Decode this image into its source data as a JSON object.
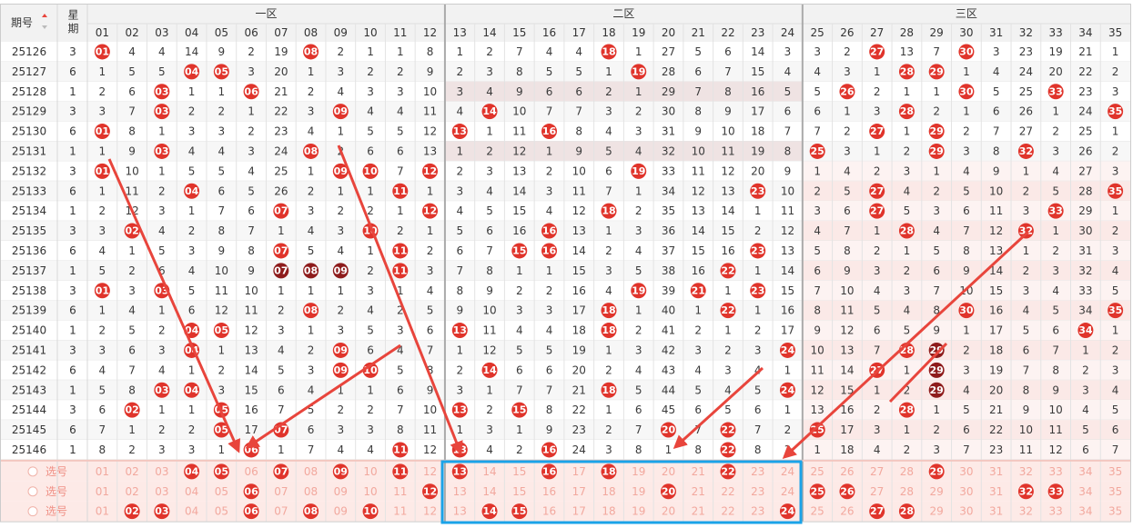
{
  "header": {
    "issue": "期号",
    "week": "星期",
    "zones": [
      "一区",
      "二区",
      "三区"
    ],
    "numbers": [
      "01",
      "02",
      "03",
      "04",
      "05",
      "06",
      "07",
      "08",
      "09",
      "10",
      "11",
      "12",
      "13",
      "14",
      "15",
      "16",
      "17",
      "18",
      "19",
      "20",
      "21",
      "22",
      "23",
      "24",
      "25",
      "26",
      "27",
      "28",
      "29",
      "30",
      "31",
      "32",
      "33",
      "34",
      "35"
    ]
  },
  "rows": [
    {
      "issue": "25126",
      "week": "3",
      "cells": [
        {
          "ball": "01"
        },
        4,
        4,
        14,
        9,
        2,
        19,
        {
          "ball": "08"
        },
        2,
        1,
        1,
        8,
        1,
        2,
        7,
        4,
        4,
        {
          "ball": "18"
        },
        1,
        27,
        5,
        6,
        14,
        3,
        3,
        2,
        {
          "ball": "27"
        },
        13,
        7,
        {
          "ball": "30"
        },
        3,
        23,
        19,
        21,
        1
      ]
    },
    {
      "issue": "25127",
      "week": "6",
      "cells": [
        1,
        5,
        5,
        {
          "ball": "04"
        },
        {
          "ball": "05"
        },
        3,
        20,
        1,
        3,
        2,
        2,
        9,
        2,
        3,
        8,
        5,
        5,
        1,
        {
          "ball": "19"
        },
        28,
        6,
        7,
        15,
        4,
        4,
        3,
        1,
        {
          "ball": "28"
        },
        {
          "ball": "29"
        },
        1,
        4,
        24,
        20,
        22,
        2
      ]
    },
    {
      "issue": "25128",
      "week": "1",
      "cells": [
        2,
        6,
        {
          "ball": "03"
        },
        1,
        1,
        {
          "ball": "06"
        },
        21,
        2,
        4,
        3,
        3,
        10,
        3,
        4,
        9,
        6,
        6,
        2,
        1,
        29,
        7,
        8,
        16,
        5,
        5,
        {
          "ball": "26"
        },
        2,
        1,
        1,
        {
          "ball": "30"
        },
        5,
        25,
        {
          "ball": "33"
        },
        23,
        3
      ]
    },
    {
      "issue": "25129",
      "week": "3",
      "cells": [
        3,
        7,
        {
          "ball": "03"
        },
        2,
        2,
        1,
        22,
        3,
        {
          "ball": "09"
        },
        4,
        4,
        11,
        4,
        {
          "ball": "14"
        },
        10,
        7,
        7,
        3,
        2,
        30,
        8,
        9,
        17,
        6,
        6,
        1,
        3,
        {
          "ball": "28"
        },
        2,
        1,
        6,
        26,
        1,
        24,
        {
          "ball": "35"
        }
      ]
    },
    {
      "issue": "25130",
      "week": "6",
      "cells": [
        {
          "ball": "01"
        },
        8,
        1,
        3,
        3,
        2,
        23,
        4,
        1,
        5,
        5,
        12,
        {
          "ball": "13"
        },
        1,
        11,
        {
          "ball": "16"
        },
        8,
        4,
        3,
        31,
        9,
        10,
        18,
        7,
        7,
        2,
        {
          "ball": "27"
        },
        1,
        {
          "ball": "29"
        },
        2,
        7,
        27,
        2,
        25,
        1
      ]
    },
    {
      "issue": "25131",
      "week": "1",
      "cells": [
        1,
        9,
        {
          "ball": "03"
        },
        4,
        4,
        3,
        24,
        {
          "ball": "08"
        },
        2,
        6,
        6,
        13,
        1,
        2,
        12,
        1,
        9,
        5,
        4,
        32,
        10,
        11,
        19,
        8,
        {
          "ball": "25"
        },
        3,
        1,
        2,
        {
          "ball": "29"
        },
        3,
        8,
        {
          "ball": "32"
        },
        3,
        26,
        2
      ]
    },
    {
      "issue": "25132",
      "week": "3",
      "cells": [
        {
          "ball": "01"
        },
        10,
        1,
        5,
        5,
        4,
        25,
        1,
        {
          "ball": "09"
        },
        {
          "ball": "10"
        },
        7,
        {
          "ball": "12"
        },
        2,
        3,
        13,
        2,
        10,
        6,
        {
          "ball": "19"
        },
        33,
        11,
        12,
        20,
        9,
        1,
        4,
        2,
        3,
        1,
        4,
        9,
        1,
        4,
        27,
        3
      ]
    },
    {
      "issue": "25133",
      "week": "6",
      "cells": [
        1,
        11,
        2,
        {
          "ball": "04"
        },
        6,
        5,
        26,
        2,
        1,
        1,
        {
          "ball": "11"
        },
        1,
        3,
        4,
        14,
        3,
        11,
        7,
        1,
        34,
        12,
        13,
        {
          "ball": "23"
        },
        10,
        2,
        5,
        {
          "ball": "27"
        },
        4,
        2,
        5,
        10,
        2,
        5,
        28,
        {
          "ball": "35"
        }
      ]
    },
    {
      "issue": "25134",
      "week": "1",
      "cells": [
        2,
        12,
        3,
        1,
        7,
        6,
        {
          "ball": "07"
        },
        3,
        2,
        2,
        1,
        {
          "ball": "12"
        },
        4,
        5,
        15,
        4,
        12,
        {
          "ball": "18"
        },
        2,
        35,
        13,
        14,
        1,
        11,
        3,
        6,
        {
          "ball": "27"
        },
        5,
        3,
        6,
        11,
        3,
        {
          "ball": "33"
        },
        29,
        1
      ]
    },
    {
      "issue": "25135",
      "week": "3",
      "cells": [
        3,
        {
          "ball": "02"
        },
        4,
        2,
        8,
        7,
        1,
        4,
        3,
        {
          "ball": "10"
        },
        2,
        1,
        5,
        6,
        16,
        {
          "ball": "16"
        },
        13,
        1,
        3,
        36,
        14,
        15,
        2,
        12,
        4,
        7,
        1,
        {
          "ball": "28"
        },
        4,
        7,
        12,
        {
          "ball": "32"
        },
        1,
        30,
        2
      ]
    },
    {
      "issue": "25136",
      "week": "6",
      "cells": [
        4,
        1,
        5,
        3,
        9,
        8,
        {
          "ball": "07"
        },
        5,
        4,
        1,
        {
          "ball": "11"
        },
        2,
        6,
        7,
        {
          "ball": "15"
        },
        {
          "ball": "16"
        },
        14,
        2,
        4,
        37,
        15,
        16,
        {
          "ball": "23"
        },
        13,
        5,
        8,
        2,
        1,
        5,
        8,
        13,
        1,
        2,
        31,
        3
      ]
    },
    {
      "issue": "25137",
      "week": "1",
      "cells": [
        5,
        2,
        6,
        4,
        10,
        9,
        {
          "ball": "07",
          "dark": true
        },
        {
          "ball": "08",
          "dark": true
        },
        {
          "ball": "09",
          "dark": true
        },
        2,
        {
          "ball": "11"
        },
        3,
        7,
        8,
        1,
        1,
        15,
        3,
        5,
        38,
        16,
        {
          "ball": "22"
        },
        1,
        14,
        6,
        9,
        3,
        2,
        6,
        9,
        14,
        2,
        3,
        32,
        4
      ]
    },
    {
      "issue": "25138",
      "week": "3",
      "cells": [
        {
          "ball": "01"
        },
        3,
        {
          "ball": "03"
        },
        5,
        11,
        10,
        1,
        1,
        1,
        3,
        1,
        4,
        8,
        9,
        2,
        2,
        16,
        4,
        {
          "ball": "19"
        },
        39,
        {
          "ball": "21"
        },
        1,
        {
          "ball": "23"
        },
        15,
        7,
        10,
        4,
        3,
        7,
        10,
        15,
        3,
        4,
        33,
        5
      ]
    },
    {
      "issue": "25139",
      "week": "6",
      "cells": [
        1,
        4,
        1,
        6,
        12,
        11,
        2,
        {
          "ball": "08"
        },
        2,
        4,
        2,
        5,
        9,
        10,
        3,
        3,
        17,
        {
          "ball": "18"
        },
        1,
        40,
        1,
        {
          "ball": "22"
        },
        1,
        16,
        8,
        11,
        5,
        4,
        8,
        {
          "ball": "30"
        },
        16,
        4,
        5,
        34,
        {
          "ball": "35"
        }
      ]
    },
    {
      "issue": "25140",
      "week": "1",
      "cells": [
        2,
        5,
        2,
        {
          "ball": "04"
        },
        {
          "ball": "05"
        },
        12,
        3,
        1,
        3,
        5,
        3,
        6,
        {
          "ball": "13"
        },
        11,
        4,
        4,
        18,
        {
          "ball": "18"
        },
        2,
        41,
        2,
        1,
        2,
        17,
        9,
        12,
        6,
        5,
        9,
        1,
        17,
        5,
        6,
        {
          "ball": "34"
        },
        1
      ]
    },
    {
      "issue": "25141",
      "week": "3",
      "cells": [
        3,
        6,
        3,
        {
          "ball": "04"
        },
        1,
        13,
        4,
        2,
        {
          "ball": "09"
        },
        6,
        4,
        7,
        1,
        12,
        5,
        5,
        19,
        1,
        3,
        42,
        3,
        2,
        3,
        {
          "ball": "24"
        },
        10,
        13,
        7,
        {
          "ball": "28"
        },
        {
          "ball": "29",
          "dark": true
        },
        2,
        18,
        6,
        7,
        1,
        2
      ]
    },
    {
      "issue": "25142",
      "week": "6",
      "cells": [
        4,
        7,
        4,
        1,
        2,
        14,
        5,
        3,
        {
          "ball": "09"
        },
        {
          "ball": "10"
        },
        5,
        8,
        2,
        {
          "ball": "14"
        },
        6,
        6,
        20,
        2,
        4,
        43,
        4,
        3,
        4,
        1,
        11,
        14,
        {
          "ball": "27"
        },
        1,
        {
          "ball": "29",
          "dark": true
        },
        3,
        19,
        7,
        8,
        2,
        3
      ]
    },
    {
      "issue": "25143",
      "week": "1",
      "cells": [
        5,
        8,
        {
          "ball": "03"
        },
        {
          "ball": "04"
        },
        3,
        15,
        6,
        4,
        1,
        1,
        6,
        9,
        3,
        1,
        7,
        7,
        21,
        {
          "ball": "18"
        },
        5,
        44,
        5,
        4,
        5,
        {
          "ball": "24"
        },
        12,
        15,
        1,
        2,
        {
          "ball": "29",
          "dark": true
        },
        4,
        20,
        8,
        9,
        3,
        4
      ]
    },
    {
      "issue": "25144",
      "week": "3",
      "cells": [
        6,
        {
          "ball": "02"
        },
        1,
        1,
        {
          "ball": "05"
        },
        16,
        7,
        5,
        2,
        2,
        7,
        10,
        {
          "ball": "13"
        },
        2,
        {
          "ball": "15"
        },
        8,
        22,
        1,
        6,
        45,
        6,
        5,
        6,
        1,
        13,
        16,
        2,
        {
          "ball": "28"
        },
        1,
        5,
        21,
        9,
        10,
        4,
        5
      ]
    },
    {
      "issue": "25145",
      "week": "6",
      "cells": [
        7,
        1,
        2,
        2,
        {
          "ball": "05"
        },
        17,
        {
          "ball": "07"
        },
        6,
        3,
        3,
        8,
        11,
        1,
        3,
        1,
        9,
        23,
        2,
        7,
        {
          "ball": "20"
        },
        7,
        {
          "ball": "22"
        },
        7,
        2,
        {
          "ball": "25"
        },
        17,
        3,
        1,
        2,
        6,
        22,
        10,
        11,
        5,
        6
      ]
    },
    {
      "issue": "25146",
      "week": "1",
      "cells": [
        8,
        2,
        3,
        3,
        1,
        {
          "ball": "06"
        },
        1,
        7,
        4,
        4,
        {
          "ball": "11"
        },
        12,
        {
          "ball": "13"
        },
        4,
        2,
        {
          "ball": "16"
        },
        24,
        3,
        8,
        1,
        8,
        {
          "ball": "22"
        },
        8,
        3,
        1,
        18,
        4,
        2,
        3,
        7,
        23,
        11,
        12,
        6,
        7
      ]
    }
  ],
  "picks": [
    {
      "label": "选号",
      "cells": [
        "01",
        "02",
        "03",
        {
          "ball": "04"
        },
        {
          "ball": "05"
        },
        "06",
        {
          "ball": "07"
        },
        "08",
        {
          "ball": "09"
        },
        "10",
        {
          "ball": "11"
        },
        "12",
        {
          "ball": "13"
        },
        "14",
        "15",
        {
          "ball": "16"
        },
        "17",
        {
          "ball": "18"
        },
        "19",
        "20",
        "21",
        {
          "ball": "22"
        },
        "23",
        "24",
        "25",
        "26",
        "27",
        "28",
        {
          "ball": "29"
        },
        "30",
        "31",
        "32",
        "33",
        "34",
        "35"
      ]
    },
    {
      "label": "选号",
      "cells": [
        "01",
        "02",
        "03",
        "04",
        "05",
        {
          "ball": "06"
        },
        "07",
        "08",
        "09",
        "10",
        "11",
        {
          "ball": "12"
        },
        "13",
        "14",
        "15",
        "16",
        "17",
        "18",
        "19",
        {
          "ball": "20"
        },
        "21",
        "22",
        "23",
        "24",
        {
          "ball": "25"
        },
        {
          "ball": "26"
        },
        "27",
        "28",
        "29",
        "30",
        "31",
        {
          "ball": "32"
        },
        {
          "ball": "33"
        },
        "34",
        "35"
      ]
    },
    {
      "label": "选号",
      "cells": [
        "01",
        {
          "ball": "02"
        },
        {
          "ball": "03"
        },
        "04",
        "05",
        {
          "ball": "06"
        },
        "07",
        {
          "ball": "08"
        },
        "09",
        {
          "ball": "10"
        },
        "11",
        "12",
        "13",
        {
          "ball": "14"
        },
        {
          "ball": "15"
        },
        "16",
        "17",
        "18",
        "19",
        "20",
        "21",
        "22",
        "23",
        {
          "ball": "24"
        },
        "25",
        "26",
        {
          "ball": "27"
        },
        {
          "ball": "28"
        },
        "29",
        "30",
        "31",
        "32",
        "33",
        "34",
        "35"
      ]
    }
  ]
}
